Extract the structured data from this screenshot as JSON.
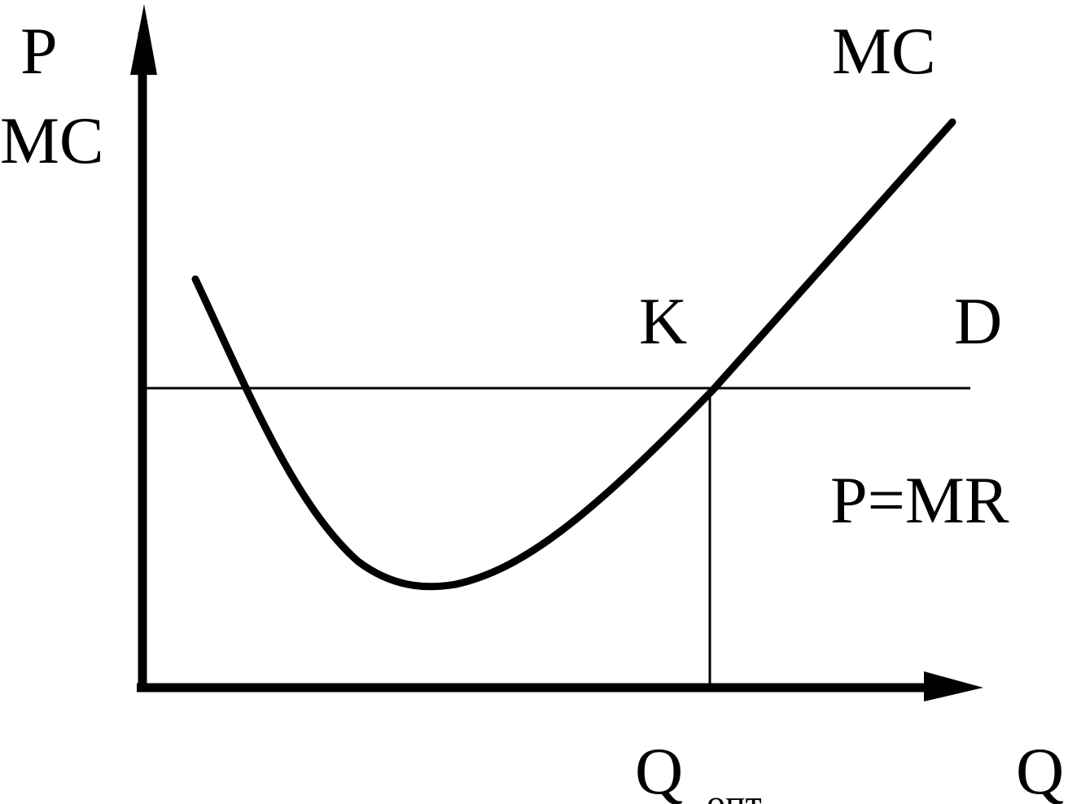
{
  "y_axis": {
    "label_lines": [
      "P",
      "MC"
    ]
  },
  "x_axis": {
    "label": "Q"
  },
  "curve": {
    "label": "MC"
  },
  "point": {
    "label": "K"
  },
  "demand": {
    "label": "D",
    "equation": "P=MR"
  },
  "quantity": {
    "label": "Q",
    "subscript": "опт"
  }
}
